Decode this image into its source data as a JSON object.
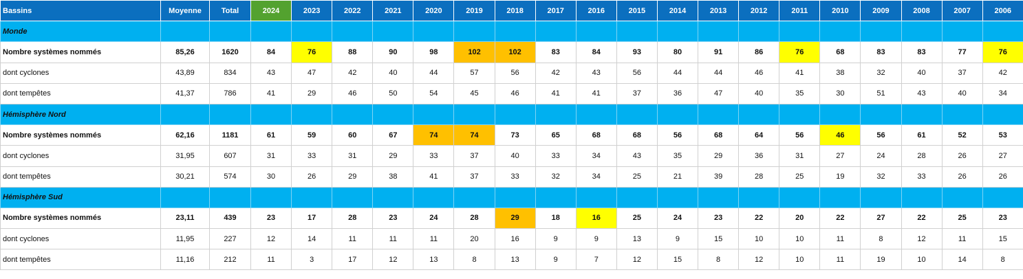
{
  "header": {
    "cells": [
      "Bassins",
      "Moyenne",
      "Total",
      "2024",
      "2023",
      "2022",
      "2021",
      "2020",
      "2019",
      "2018",
      "2017",
      "2016",
      "2015",
      "2014",
      "2013",
      "2012",
      "2011",
      "2010",
      "2009",
      "2008",
      "2007",
      "2006"
    ],
    "color": "#0b6fbf",
    "fill": [
      null,
      null,
      null,
      "#53a22f",
      null,
      null,
      null,
      null,
      null,
      null,
      null,
      null,
      null,
      null,
      null,
      null,
      null,
      null,
      null,
      null,
      null,
      null
    ]
  },
  "section_color": "#00b0f0",
  "sections": [
    {
      "title": "Monde",
      "rows": [
        {
          "label": "Nombre systèmes nommés",
          "values": [
            "85,26",
            "1620",
            "84",
            "76",
            "88",
            "90",
            "98",
            "102",
            "102",
            "83",
            "84",
            "93",
            "80",
            "91",
            "86",
            "76",
            "68",
            "83",
            "83",
            "77",
            "76"
          ],
          "fill": [
            null,
            null,
            null,
            "#ffff00",
            null,
            null,
            null,
            "#ffc000",
            "#ffc000",
            null,
            null,
            null,
            null,
            null,
            null,
            "#ffff00",
            null,
            null,
            null,
            null,
            "#ffff00"
          ]
        },
        {
          "label": "dont cyclones",
          "values": [
            "43,89",
            "834",
            "43",
            "47",
            "42",
            "40",
            "44",
            "57",
            "56",
            "42",
            "43",
            "56",
            "44",
            "44",
            "46",
            "41",
            "38",
            "32",
            "40",
            "37",
            "42"
          ]
        },
        {
          "label": "dont tempêtes",
          "values": [
            "41,37",
            "786",
            "41",
            "29",
            "46",
            "50",
            "54",
            "45",
            "46",
            "41",
            "41",
            "37",
            "36",
            "47",
            "40",
            "35",
            "30",
            "51",
            "43",
            "40",
            "34"
          ]
        }
      ]
    },
    {
      "title": "Hémisphère Nord",
      "rows": [
        {
          "label": "Nombre systèmes nommés",
          "values": [
            "62,16",
            "1181",
            "61",
            "59",
            "60",
            "67",
            "74",
            "74",
            "73",
            "65",
            "68",
            "68",
            "56",
            "68",
            "64",
            "56",
            "46",
            "56",
            "61",
            "52",
            "53"
          ],
          "fill": [
            null,
            null,
            null,
            null,
            null,
            null,
            "#ffc000",
            "#ffc000",
            null,
            null,
            null,
            null,
            null,
            null,
            null,
            null,
            "#ffff00",
            null,
            null,
            null,
            null
          ]
        },
        {
          "label": "dont cyclones",
          "values": [
            "31,95",
            "607",
            "31",
            "33",
            "31",
            "29",
            "33",
            "37",
            "40",
            "33",
            "34",
            "43",
            "35",
            "29",
            "36",
            "31",
            "27",
            "24",
            "28",
            "26",
            "27"
          ]
        },
        {
          "label": "dont tempêtes",
          "values": [
            "30,21",
            "574",
            "30",
            "26",
            "29",
            "38",
            "41",
            "37",
            "33",
            "32",
            "34",
            "25",
            "21",
            "39",
            "28",
            "25",
            "19",
            "32",
            "33",
            "26",
            "26"
          ]
        }
      ]
    },
    {
      "title": "Hémisphère Sud",
      "rows": [
        {
          "label": "Nombre systèmes nommés",
          "values": [
            "23,11",
            "439",
            "23",
            "17",
            "28",
            "23",
            "24",
            "28",
            "29",
            "18",
            "16",
            "25",
            "24",
            "23",
            "22",
            "20",
            "22",
            "27",
            "22",
            "25",
            "23"
          ],
          "fill": [
            null,
            null,
            null,
            null,
            null,
            null,
            null,
            null,
            "#ffc000",
            null,
            "#ffff00",
            null,
            null,
            null,
            null,
            null,
            null,
            null,
            null,
            null,
            null
          ]
        },
        {
          "label": "dont cyclones",
          "values": [
            "11,95",
            "227",
            "12",
            "14",
            "11",
            "11",
            "11",
            "20",
            "16",
            "9",
            "9",
            "13",
            "9",
            "15",
            "10",
            "10",
            "11",
            "8",
            "12",
            "11",
            "15"
          ]
        },
        {
          "label": "dont tempêtes",
          "values": [
            "11,16",
            "212",
            "11",
            "3",
            "17",
            "12",
            "13",
            "8",
            "13",
            "9",
            "7",
            "12",
            "15",
            "8",
            "12",
            "10",
            "11",
            "19",
            "10",
            "14",
            "8"
          ]
        }
      ]
    }
  ]
}
